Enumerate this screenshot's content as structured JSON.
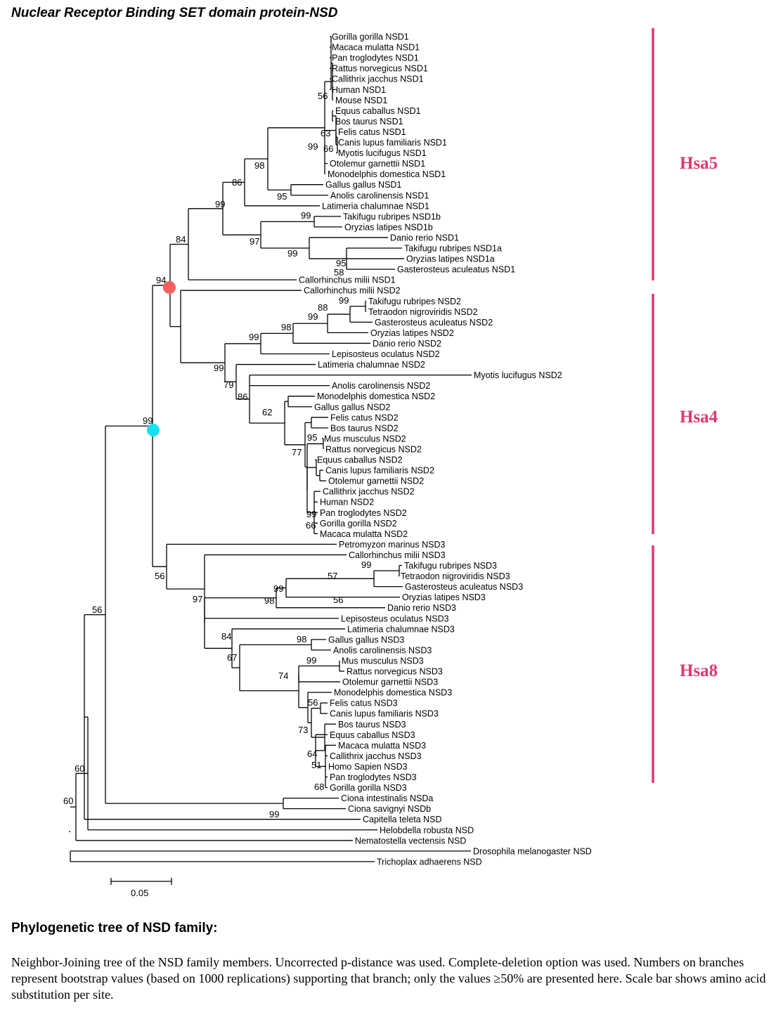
{
  "title": "Nuclear Receptor Binding SET domain protein-NSD",
  "caption_heading": "Phylogenetic tree of NSD family:",
  "caption_body": "Neighbor-Joining tree of the NSD family members. Uncorrected p-distance was used. Complete-deletion option was used. Numbers on branches represent bootstrap values (based on 1000 replications) supporting that branch; only the values ≥50% are presented here. Scale bar shows amino acid substitution per site.",
  "scale_bar_label": "0.05",
  "colors": {
    "group_bar": "#e0386c",
    "node_red": "#f26060",
    "node_cyan": "#17e0f0"
  },
  "groups": [
    "Hsa5",
    "Hsa4",
    "Hsa8"
  ],
  "leaves": [
    "Gorilla gorilla NSD1",
    "Macaca mulatta NSD1",
    "Pan troglodytes NSD1",
    "Rattus norvegicus NSD1",
    "Callithrix jacchus NSD1",
    "Human NSD1",
    "Mouse NSD1",
    "Equus caballus NSD1",
    "Bos taurus NSD1",
    "Felis catus NSD1",
    "Canis lupus familiaris NSD1",
    "Myotis lucifugus NSD1",
    "Otolemur garnettii NSD1",
    "Monodelphis domestica NSD1",
    "Gallus gallus NSD1",
    "Anolis carolinensis NSD1",
    "Latimeria chalumnae NSD1",
    "Takifugu rubripes NSD1b",
    "Oryzias latipes NSD1b",
    "Danio rerio NSD1",
    "Takifugu rubripes NSD1a",
    "Oryzias latipes NSD1a",
    "Gasterosteus aculeatus NSD1",
    "Callorhinchus milii NSD1",
    "Callorhinchus milii NSD2",
    "Takifugu rubripes NSD2",
    "Tetraodon nigroviridis NSD2",
    "Gasterosteus aculeatus NSD2",
    "Oryzias latipes NSD2",
    "Danio rerio NSD2",
    "Lepisosteus oculatus NSD2",
    "Latimeria chalumnae NSD2",
    "Myotis lucifugus NSD2",
    "Anolis carolinensis NSD2",
    "Monodelphis domestica NSD2",
    "Gallus gallus NSD2",
    "Felis catus NSD2",
    "Bos taurus NSD2",
    "Mus musculus NSD2",
    "Rattus norvegicus NSD2",
    "Equus caballus NSD2",
    "Canis lupus familiaris NSD2",
    "Otolemur garnettii NSD2",
    "Callithrix jacchus NSD2",
    "Human NSD2",
    "Pan troglodytes NSD2",
    "Gorilla gorilla NSD2",
    "Macaca mulatta NSD2",
    "Petromyzon marinus NSD3",
    "Callorhinchus milii NSD3",
    "Takifugu rubripes NSD3",
    "Tetraodon nigroviridis NSD3",
    "Gasterosteus aculeatus NSD3",
    "Oryzias latipes NSD3",
    "Danio rerio NSD3",
    "Lepisosteus oculatus NSD3",
    "Latimeria chalumnae NSD3",
    "Gallus gallus NSD3",
    "Anolis carolinensis NSD3",
    "Mus musculus NSD3",
    "Rattus norvegicus NSD3",
    "Otolemur garnettii NSD3",
    "Monodelphis domestica NSD3",
    "Felis catus NSD3",
    "Canis lupus familiaris NSD3",
    "Bos taurus NSD3",
    "Equus caballus NSD3",
    "Macaca mulatta NSD3",
    "Callithrix jacchus NSD3",
    "Homo Sapien NSD3",
    "Pan troglodytes NSD3",
    "Gorilla gorilla NSD3",
    "Ciona intestinalis NSDa",
    "Ciona savignyi NSDb",
    "Capitella teleta NSD",
    "Helobdella robusta NSD",
    "Nematostella vectensis NSD",
    "Drosophila melanogaster NSD",
    "Trichoplax adhaerens NSD"
  ],
  "bootstraps": [
    "56",
    "63",
    "66",
    "99",
    "98",
    "95",
    "86",
    "99",
    "99",
    "95",
    "99",
    "58",
    "97",
    "84",
    "94",
    "99",
    "88",
    "99",
    "98",
    "99",
    "99",
    "79",
    "86",
    "62",
    "95",
    "77",
    "99",
    "66",
    "99",
    "99",
    "57",
    "99",
    "56",
    "98",
    "97",
    "84",
    "98",
    "99",
    "74",
    "56",
    "73",
    "64",
    "51",
    "68",
    "67",
    "56",
    "99",
    "56",
    "60"
  ]
}
